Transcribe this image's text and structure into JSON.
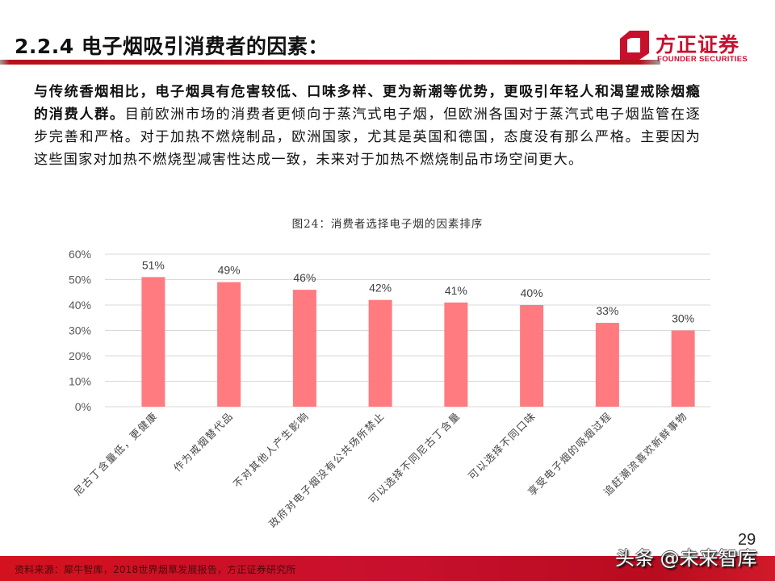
{
  "header": {
    "title": "2.2.4 电子烟吸引消费者的因素：",
    "accent_color": "#c8102e"
  },
  "logo": {
    "name_cn": "方正证券",
    "name_en": "FOUNDER SECURITIES",
    "icon": "founder-logo-icon"
  },
  "body": {
    "bold_text": "与传统香烟相比，电子烟具有危害较低、口味多样、更为新潮等优势，更吸引年轻人和渴望戒除烟瘾的消费人群。",
    "normal_text": "目前欧洲市场的消费者更倾向于蒸汽式电子烟，但欧洲各国对于蒸汽式电子烟监管在逐步完善和严格。对于加热不燃烧制品，欧洲国家，尤其是英国和德国，态度没有那么严格。主要因为这些国家对加热不燃烧型减害性达成一致，未来对于加热不燃烧制品市场空间更大。"
  },
  "chart_data": {
    "type": "bar",
    "title": "图24：消费者选择电子烟的因素排序",
    "categories": [
      "尼古丁含量低，更健康",
      "作为戒烟替代品",
      "不对其他人产生影响",
      "政府对电子烟没有公共场所禁止",
      "可以选择不同尼古丁含量",
      "可以选择不同口味",
      "享受电子烟的吸烟过程",
      "追赶潮流喜欢新鲜事物"
    ],
    "values": [
      51,
      49,
      46,
      42,
      41,
      40,
      33,
      30
    ],
    "value_labels": [
      "51%",
      "49%",
      "46%",
      "42%",
      "41%",
      "40%",
      "33%",
      "30%"
    ],
    "y_ticks": [
      "0%",
      "10%",
      "20%",
      "30%",
      "40%",
      "50%",
      "60%"
    ],
    "xlabel": "",
    "ylabel": "",
    "ylim": [
      0,
      60
    ],
    "grid": true,
    "legend": null,
    "bar_color": "#ff7b7f",
    "grid_color": "#d9d9d9"
  },
  "footer": {
    "source": "资料来源：犀牛智库，2018世界烟草发展报告，方正证券研究所",
    "page_number": "29",
    "watermark": "头条 @未来智库"
  }
}
